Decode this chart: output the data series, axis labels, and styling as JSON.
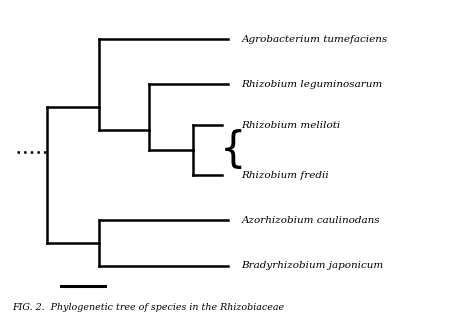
{
  "taxa": [
    "Agrobacterium tumefaciens",
    "Rhizobium leguminosarum",
    "Rhizobium meliloti",
    "Rhizobium fredii",
    "Azorhizobium caulinodans",
    "Bradyrhizobium japonicum"
  ],
  "taxa_y": [
    6,
    5,
    4,
    3,
    2,
    1
  ],
  "tree_color": "#000000",
  "bg_color": "#ffffff",
  "lw": 1.8,
  "caption": "FIG. 2.  Phylogenetic tree of species in the Rhizobiaceae"
}
